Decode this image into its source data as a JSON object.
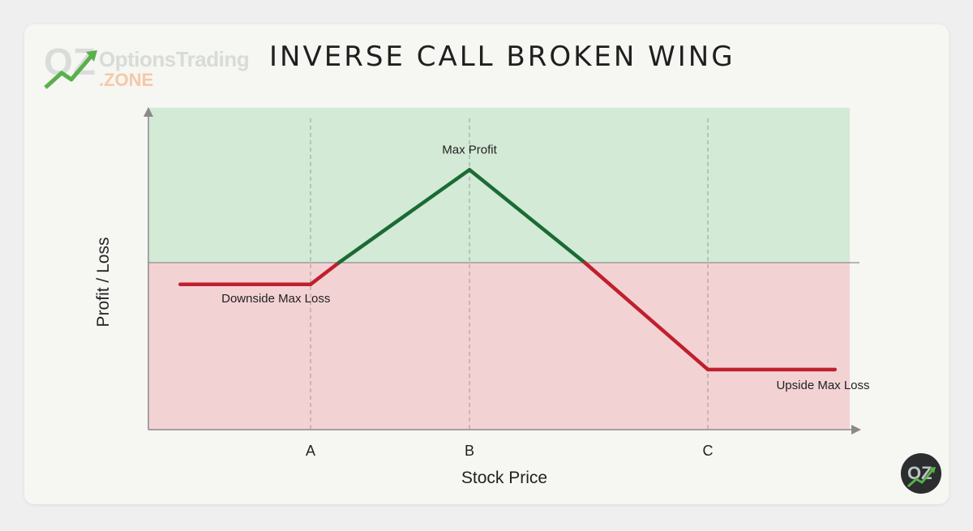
{
  "header": {
    "logo_text_1": "OptionsTrading",
    "logo_text_2": ".ZONE",
    "title": "INVERSE CALL BROKEN WING"
  },
  "colors": {
    "profit_zone": "#d3ead6",
    "loss_zone": "#f3d2d4",
    "profit_line": "#1a6b34",
    "loss_line": "#c01f2e"
  },
  "icons": [
    "oz-logo-icon",
    "oz-badge-icon"
  ],
  "chart_data": {
    "type": "line",
    "title": "INVERSE CALL BROKEN WING",
    "xlabel": "Stock Price",
    "ylabel": "Profit / Loss",
    "x_ticks": [
      "A",
      "B",
      "C"
    ],
    "x_tick_positions": [
      1,
      2,
      3.5
    ],
    "xlim": [
      0,
      4.4
    ],
    "ylim": [
      -1.0,
      1.0
    ],
    "grid": "vertical dashed lines at A, B, C",
    "series": [
      {
        "x": [
          0.18,
          1,
          2,
          3.5,
          4.3
        ],
        "y": [
          -0.13,
          -0.13,
          0.6,
          -0.64,
          -0.64
        ]
      }
    ],
    "annotations": [
      {
        "text": "Max Profit",
        "x": 2,
        "y": 0.6
      },
      {
        "text": "Downside Max Loss",
        "x": 0.22,
        "y": -0.13
      },
      {
        "text": "Upside Max Loss",
        "x": 3.5,
        "y": -0.64
      }
    ]
  }
}
